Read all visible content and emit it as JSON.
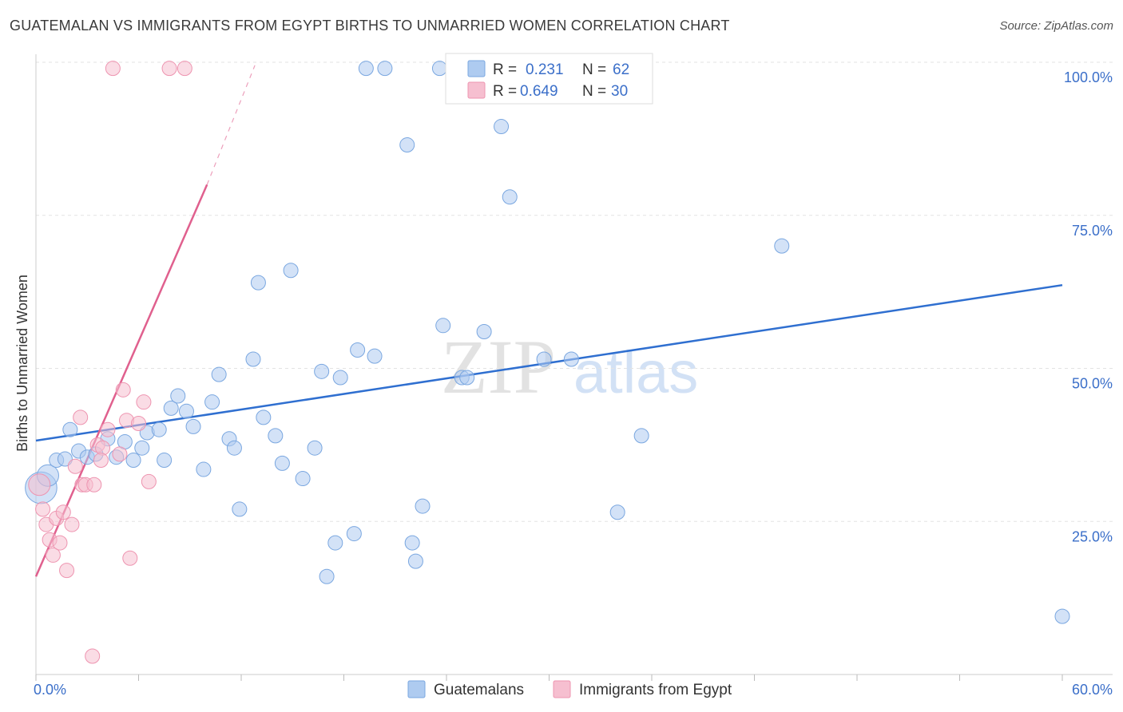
{
  "title": "GUATEMALAN VS IMMIGRANTS FROM EGYPT BIRTHS TO UNMARRIED WOMEN CORRELATION CHART",
  "source": "Source: ZipAtlas.com",
  "watermark": {
    "zip": "ZIP",
    "atlas": "atlas"
  },
  "colors": {
    "blue_fill": "#aecbf0",
    "blue_stroke": "#7aa7e0",
    "blue_line": "#2f6fd0",
    "pink_fill": "#f6bfd0",
    "pink_stroke": "#ee94b0",
    "pink_line": "#e0608e",
    "label": "#3b6fc9"
  },
  "legend": {
    "r_label": "R =",
    "n_label": "N =",
    "rows": [
      {
        "r": "0.231",
        "n": "62"
      },
      {
        "r": "0.649",
        "n": "30"
      }
    ]
  },
  "chart_data": {
    "type": "scatter",
    "title": "GUATEMALAN VS IMMIGRANTS FROM EGYPT BIRTHS TO UNMARRIED WOMEN CORRELATION CHART",
    "xlabel": "",
    "ylabel": "Births to Unmarried Women",
    "xlim": [
      0,
      60
    ],
    "ylim": [
      0,
      100
    ],
    "x_tick_labels": [
      "0.0%",
      "60.0%"
    ],
    "y_tick_labels": [
      "25.0%",
      "50.0%",
      "75.0%",
      "100.0%"
    ],
    "y_ticks": [
      25,
      50,
      75,
      100
    ],
    "series": [
      {
        "name": "Guatemalans",
        "r": 0.231,
        "n": 62,
        "trend": {
          "x": [
            0,
            60
          ],
          "y": [
            38.2,
            63.6
          ]
        },
        "points": [
          {
            "x": 0.3,
            "y": 30.5,
            "s": 2.2
          },
          {
            "x": 0.7,
            "y": 32.5,
            "s": 1.5
          },
          {
            "x": 1.2,
            "y": 35.0,
            "s": 1
          },
          {
            "x": 1.7,
            "y": 35.2,
            "s": 1
          },
          {
            "x": 2.0,
            "y": 40.0,
            "s": 1
          },
          {
            "x": 2.5,
            "y": 36.5,
            "s": 1
          },
          {
            "x": 3.0,
            "y": 35.5,
            "s": 1
          },
          {
            "x": 3.5,
            "y": 36.0,
            "s": 1
          },
          {
            "x": 4.2,
            "y": 38.5,
            "s": 1
          },
          {
            "x": 4.7,
            "y": 35.5,
            "s": 1
          },
          {
            "x": 5.2,
            "y": 38.0,
            "s": 1
          },
          {
            "x": 5.7,
            "y": 35.0,
            "s": 1
          },
          {
            "x": 6.2,
            "y": 37.0,
            "s": 1
          },
          {
            "x": 6.5,
            "y": 39.5,
            "s": 1
          },
          {
            "x": 7.2,
            "y": 40.0,
            "s": 1
          },
          {
            "x": 7.5,
            "y": 35.0,
            "s": 1
          },
          {
            "x": 7.9,
            "y": 43.5,
            "s": 1
          },
          {
            "x": 8.3,
            "y": 45.5,
            "s": 1
          },
          {
            "x": 8.8,
            "y": 43.0,
            "s": 1
          },
          {
            "x": 9.2,
            "y": 40.5,
            "s": 1
          },
          {
            "x": 9.8,
            "y": 33.5,
            "s": 1
          },
          {
            "x": 10.3,
            "y": 44.5,
            "s": 1
          },
          {
            "x": 10.7,
            "y": 49.0,
            "s": 1
          },
          {
            "x": 11.3,
            "y": 38.5,
            "s": 1
          },
          {
            "x": 11.6,
            "y": 37.0,
            "s": 1
          },
          {
            "x": 11.9,
            "y": 27.0,
            "s": 1
          },
          {
            "x": 12.7,
            "y": 51.5,
            "s": 1
          },
          {
            "x": 13.0,
            "y": 64.0,
            "s": 1
          },
          {
            "x": 13.3,
            "y": 42.0,
            "s": 1
          },
          {
            "x": 14.0,
            "y": 39.0,
            "s": 1
          },
          {
            "x": 14.4,
            "y": 34.5,
            "s": 1
          },
          {
            "x": 14.9,
            "y": 66.0,
            "s": 1
          },
          {
            "x": 15.6,
            "y": 32.0,
            "s": 1
          },
          {
            "x": 16.3,
            "y": 37.0,
            "s": 1
          },
          {
            "x": 16.7,
            "y": 49.5,
            "s": 1
          },
          {
            "x": 17.0,
            "y": 16.0,
            "s": 1
          },
          {
            "x": 17.5,
            "y": 21.5,
            "s": 1
          },
          {
            "x": 17.8,
            "y": 48.5,
            "s": 1
          },
          {
            "x": 18.6,
            "y": 23.0,
            "s": 1
          },
          {
            "x": 18.8,
            "y": 53.0,
            "s": 1
          },
          {
            "x": 19.3,
            "y": 99.0,
            "s": 1
          },
          {
            "x": 19.8,
            "y": 52.0,
            "s": 1
          },
          {
            "x": 20.4,
            "y": 99.0,
            "s": 1
          },
          {
            "x": 21.7,
            "y": 86.5,
            "s": 1
          },
          {
            "x": 22.0,
            "y": 21.5,
            "s": 1
          },
          {
            "x": 22.2,
            "y": 18.5,
            "s": 1
          },
          {
            "x": 22.6,
            "y": 27.5,
            "s": 1
          },
          {
            "x": 23.6,
            "y": 99.0,
            "s": 1
          },
          {
            "x": 23.8,
            "y": 57.0,
            "s": 1
          },
          {
            "x": 24.9,
            "y": 48.5,
            "s": 1
          },
          {
            "x": 25.2,
            "y": 48.5,
            "s": 1
          },
          {
            "x": 26.2,
            "y": 56.0,
            "s": 1
          },
          {
            "x": 27.2,
            "y": 89.5,
            "s": 1
          },
          {
            "x": 27.7,
            "y": 78.0,
            "s": 1
          },
          {
            "x": 29.7,
            "y": 51.5,
            "s": 1
          },
          {
            "x": 31.3,
            "y": 51.5,
            "s": 1
          },
          {
            "x": 34.0,
            "y": 26.5,
            "s": 1
          },
          {
            "x": 35.4,
            "y": 39.0,
            "s": 1
          },
          {
            "x": 43.6,
            "y": 70.0,
            "s": 1
          },
          {
            "x": 60.0,
            "y": 9.5,
            "s": 1
          }
        ]
      },
      {
        "name": "Immigrants from Egypt",
        "r": 0.649,
        "n": 30,
        "trend": {
          "x": [
            0,
            10.0
          ],
          "y": [
            16.0,
            80.0
          ],
          "dashed_to": {
            "x": 12.8,
            "y": 99.5
          }
        },
        "points": [
          {
            "x": 0.2,
            "y": 31.0,
            "s": 1.5
          },
          {
            "x": 0.4,
            "y": 27.0,
            "s": 1
          },
          {
            "x": 0.6,
            "y": 24.5,
            "s": 1
          },
          {
            "x": 0.8,
            "y": 22.0,
            "s": 1
          },
          {
            "x": 1.0,
            "y": 19.5,
            "s": 1
          },
          {
            "x": 1.2,
            "y": 25.5,
            "s": 1
          },
          {
            "x": 1.4,
            "y": 21.5,
            "s": 1
          },
          {
            "x": 1.6,
            "y": 26.5,
            "s": 1
          },
          {
            "x": 1.8,
            "y": 17.0,
            "s": 1
          },
          {
            "x": 2.1,
            "y": 24.5,
            "s": 1
          },
          {
            "x": 2.3,
            "y": 34.0,
            "s": 1
          },
          {
            "x": 2.6,
            "y": 42.0,
            "s": 1
          },
          {
            "x": 2.7,
            "y": 31.0,
            "s": 1
          },
          {
            "x": 2.9,
            "y": 31.0,
            "s": 1
          },
          {
            "x": 3.4,
            "y": 31.0,
            "s": 1
          },
          {
            "x": 3.3,
            "y": 3.0,
            "s": 1
          },
          {
            "x": 3.6,
            "y": 37.5,
            "s": 1
          },
          {
            "x": 3.9,
            "y": 37.0,
            "s": 1
          },
          {
            "x": 3.8,
            "y": 35.0,
            "s": 1
          },
          {
            "x": 4.2,
            "y": 40.0,
            "s": 1
          },
          {
            "x": 4.5,
            "y": 99.0,
            "s": 1
          },
          {
            "x": 4.9,
            "y": 36.0,
            "s": 1
          },
          {
            "x": 5.1,
            "y": 46.5,
            "s": 1
          },
          {
            "x": 5.3,
            "y": 41.5,
            "s": 1
          },
          {
            "x": 5.5,
            "y": 19.0,
            "s": 1
          },
          {
            "x": 6.0,
            "y": 41.0,
            "s": 1
          },
          {
            "x": 6.3,
            "y": 44.5,
            "s": 1
          },
          {
            "x": 6.6,
            "y": 31.5,
            "s": 1
          },
          {
            "x": 7.8,
            "y": 99.0,
            "s": 1
          },
          {
            "x": 8.7,
            "y": 99.0,
            "s": 1
          }
        ]
      }
    ],
    "legend_position": "top-center"
  }
}
